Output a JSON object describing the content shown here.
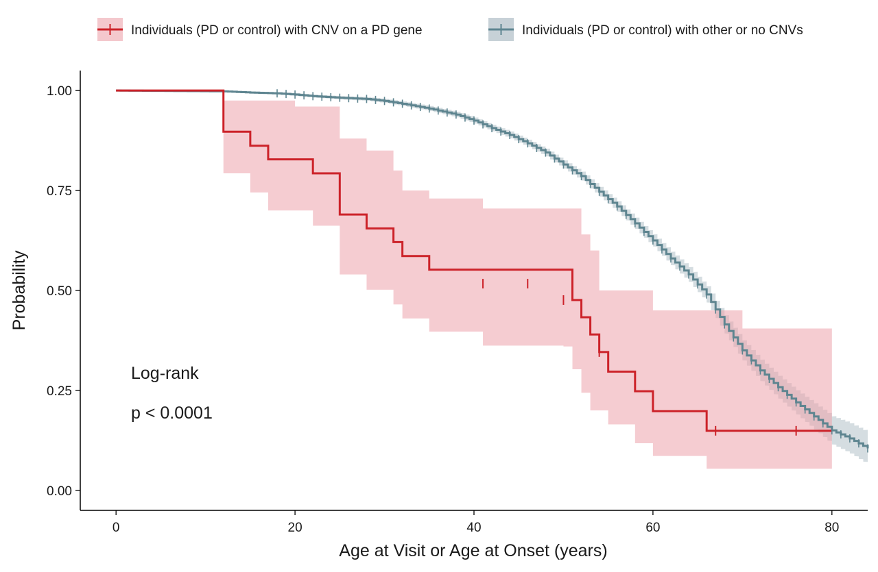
{
  "chart_data": {
    "type": "line",
    "subtype": "kaplan-meier-step",
    "xlabel": "Age at Visit or Age at Onset (years)",
    "ylabel": "Probability",
    "xlim": [
      -4,
      84
    ],
    "ylim": [
      -0.05,
      1.05
    ],
    "xticks": [
      "0",
      "20",
      "40",
      "60",
      "80"
    ],
    "xtick_values": [
      0,
      20,
      40,
      60,
      80
    ],
    "yticks": [
      "0.00",
      "0.25",
      "0.50",
      "0.75",
      "1.00"
    ],
    "ytick_values": [
      0,
      0.25,
      0.5,
      0.75,
      1.0
    ],
    "grid": false,
    "legend_position": "top",
    "annotation": {
      "line1": "Log-rank",
      "line2": "p < 0.0001"
    },
    "series": [
      {
        "name": "Individuals (PD or control) with CNV on a PD gene",
        "color": "#cc2229",
        "band_color": "#eda3ab",
        "steps": [
          [
            0,
            1.0
          ],
          [
            12,
            0.897
          ],
          [
            15,
            0.862
          ],
          [
            17,
            0.828
          ],
          [
            22,
            0.793
          ],
          [
            25,
            0.69
          ],
          [
            28,
            0.655
          ],
          [
            31,
            0.621
          ],
          [
            32,
            0.586
          ],
          [
            35,
            0.552
          ],
          [
            51,
            0.476
          ],
          [
            52,
            0.433
          ],
          [
            53,
            0.39
          ],
          [
            54,
            0.346
          ],
          [
            55,
            0.297
          ],
          [
            58,
            0.248
          ],
          [
            60,
            0.198
          ],
          [
            66,
            0.149
          ],
          [
            80,
            0.149
          ]
        ],
        "lower": [
          [
            0,
            1.0
          ],
          [
            12,
            0.793
          ],
          [
            15,
            0.745
          ],
          [
            17,
            0.7
          ],
          [
            22,
            0.662
          ],
          [
            25,
            0.54
          ],
          [
            28,
            0.502
          ],
          [
            31,
            0.465
          ],
          [
            32,
            0.43
          ],
          [
            35,
            0.397
          ],
          [
            41,
            0.362
          ],
          [
            50,
            0.36
          ],
          [
            51,
            0.303
          ],
          [
            52,
            0.244
          ],
          [
            53,
            0.2
          ],
          [
            55,
            0.165
          ],
          [
            58,
            0.118
          ],
          [
            60,
            0.086
          ],
          [
            66,
            0.054
          ],
          [
            80,
            0.054
          ]
        ],
        "upper": [
          [
            0,
            1.0
          ],
          [
            12,
            0.975
          ],
          [
            15,
            0.975
          ],
          [
            17,
            0.975
          ],
          [
            20,
            0.96
          ],
          [
            22,
            0.96
          ],
          [
            25,
            0.88
          ],
          [
            28,
            0.85
          ],
          [
            31,
            0.8
          ],
          [
            32,
            0.75
          ],
          [
            35,
            0.73
          ],
          [
            41,
            0.705
          ],
          [
            50,
            0.705
          ],
          [
            52,
            0.64
          ],
          [
            53,
            0.6
          ],
          [
            54,
            0.5
          ],
          [
            58,
            0.5
          ],
          [
            60,
            0.45
          ],
          [
            66,
            0.45
          ],
          [
            70,
            0.405
          ],
          [
            80,
            0.405
          ]
        ],
        "censored": [
          [
            41,
            0.517
          ],
          [
            46,
            0.517
          ],
          [
            50,
            0.476
          ],
          [
            54,
            0.346
          ],
          [
            67,
            0.149
          ],
          [
            76,
            0.149
          ]
        ]
      },
      {
        "name": "Individuals (PD or control) with other or no CNVs",
        "color": "#5e8590",
        "band_color": "#c7d1d7",
        "points": [
          [
            0,
            1.0
          ],
          [
            12,
            0.998
          ],
          [
            15,
            0.995
          ],
          [
            18,
            0.993
          ],
          [
            20,
            0.99
          ],
          [
            22,
            0.986
          ],
          [
            25,
            0.982
          ],
          [
            28,
            0.979
          ],
          [
            30,
            0.974
          ],
          [
            32,
            0.967
          ],
          [
            35,
            0.955
          ],
          [
            38,
            0.94
          ],
          [
            40,
            0.925
          ],
          [
            42,
            0.906
          ],
          [
            44,
            0.889
          ],
          [
            46,
            0.868
          ],
          [
            48,
            0.845
          ],
          [
            50,
            0.815
          ],
          [
            52,
            0.786
          ],
          [
            54,
            0.747
          ],
          [
            56,
            0.71
          ],
          [
            58,
            0.668
          ],
          [
            60,
            0.625
          ],
          [
            62,
            0.58
          ],
          [
            64,
            0.54
          ],
          [
            66,
            0.49
          ],
          [
            68,
            0.415
          ],
          [
            70,
            0.35
          ],
          [
            72,
            0.3
          ],
          [
            74,
            0.258
          ],
          [
            76,
            0.22
          ],
          [
            78,
            0.185
          ],
          [
            80,
            0.15
          ],
          [
            82,
            0.13
          ],
          [
            84,
            0.105
          ]
        ],
        "band_halfwidth": [
          [
            0,
            0
          ],
          [
            30,
            0.005
          ],
          [
            50,
            0.01
          ],
          [
            60,
            0.015
          ],
          [
            66,
            0.02
          ],
          [
            70,
            0.025
          ],
          [
            76,
            0.03
          ],
          [
            80,
            0.035
          ],
          [
            84,
            0.04
          ]
        ]
      }
    ]
  }
}
